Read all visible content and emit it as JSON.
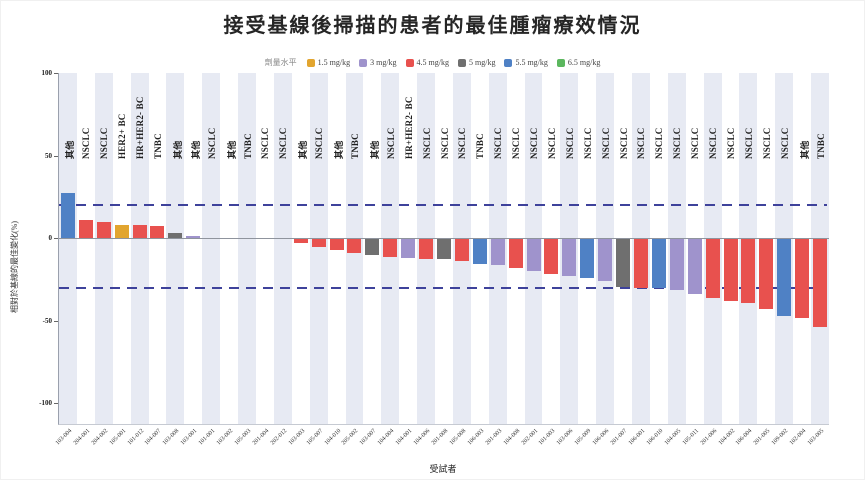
{
  "title": "接受基線後掃描的患者的最佳腫瘤療效情況",
  "legend": {
    "title": "劑量水平",
    "items": [
      {
        "key": "1.5",
        "label": "1.5 mg/kg",
        "color": "#e2a52f"
      },
      {
        "key": "3",
        "label": "3 mg/kg",
        "color": "#9f93cc"
      },
      {
        "key": "4.5",
        "label": "4.5 mg/kg",
        "color": "#e8514e"
      },
      {
        "key": "5",
        "label": "5 mg/kg",
        "color": "#6f6f6f"
      },
      {
        "key": "5.5",
        "label": "5.5 mg/kg",
        "color": "#4f81c5"
      },
      {
        "key": "6.5",
        "label": "6.5 mg/kg",
        "color": "#5bb75e"
      }
    ]
  },
  "chart_data": {
    "type": "bar",
    "title": "接受基線後掃描的患者的最佳腫瘤療效情況",
    "xlabel": "受試者",
    "ylabel": "相對於基線的最佳變化(%)",
    "ylim": [
      -100,
      100
    ],
    "yticks": [
      100,
      50,
      0,
      -50,
      -100
    ],
    "grid": false,
    "legend_position": "top",
    "reference_lines": [
      {
        "value": 20,
        "style": "dashed",
        "color": "#3e429b"
      },
      {
        "value": -30,
        "style": "dashed",
        "color": "#3e429b"
      }
    ],
    "stripe_color": "#e7eaf3",
    "bars": [
      {
        "subject": "103-004",
        "group": "其他",
        "dose": "5.5",
        "value": 27
      },
      {
        "subject": "204-001",
        "group": "NSCLC",
        "dose": "4.5",
        "value": 11
      },
      {
        "subject": "204-002",
        "group": "NSCLC",
        "dose": "4.5",
        "value": 10
      },
      {
        "subject": "105-001",
        "group": "HER2+ BC",
        "dose": "1.5",
        "value": 8
      },
      {
        "subject": "101-012",
        "group": "HR+HER2- BC",
        "dose": "4.5",
        "value": 8
      },
      {
        "subject": "104-007",
        "group": "TNBC",
        "dose": "4.5",
        "value": 7
      },
      {
        "subject": "103-008",
        "group": "其他",
        "dose": "5",
        "value": 3
      },
      {
        "subject": "103-001",
        "group": "其他",
        "dose": "3",
        "value": 1
      },
      {
        "subject": "101-001",
        "group": "NSCLC",
        "dose": "",
        "value": 0
      },
      {
        "subject": "103-002",
        "group": "其他",
        "dose": "",
        "value": 0
      },
      {
        "subject": "105-003",
        "group": "TNBC",
        "dose": "",
        "value": 0
      },
      {
        "subject": "201-004",
        "group": "NSCLC",
        "dose": "",
        "value": 0
      },
      {
        "subject": "202-012",
        "group": "NSCLC",
        "dose": "",
        "value": 0
      },
      {
        "subject": "103-003",
        "group": "其他",
        "dose": "4.5",
        "value": -3
      },
      {
        "subject": "105-007",
        "group": "NSCLC",
        "dose": "4.5",
        "value": -5.5
      },
      {
        "subject": "104-010",
        "group": "其他",
        "dose": "4.5",
        "value": -7.5
      },
      {
        "subject": "205-002",
        "group": "TNBC",
        "dose": "4.5",
        "value": -9
      },
      {
        "subject": "103-007",
        "group": "其他",
        "dose": "5",
        "value": -10
      },
      {
        "subject": "104-004",
        "group": "NSCLC",
        "dose": "4.5",
        "value": -11.5
      },
      {
        "subject": "104-001",
        "group": "HR+HER2- BC",
        "dose": "3",
        "value": -12
      },
      {
        "subject": "104-006",
        "group": "NSCLC",
        "dose": "4.5",
        "value": -12.5
      },
      {
        "subject": "201-008",
        "group": "NSCLC",
        "dose": "5",
        "value": -13
      },
      {
        "subject": "105-008",
        "group": "NSCLC",
        "dose": "4.5",
        "value": -14
      },
      {
        "subject": "106-003",
        "group": "TNBC",
        "dose": "5.5",
        "value": -15.5
      },
      {
        "subject": "201-003",
        "group": "NSCLC",
        "dose": "3",
        "value": -16.5
      },
      {
        "subject": "104-008",
        "group": "NSCLC",
        "dose": "4.5",
        "value": -18
      },
      {
        "subject": "202-001",
        "group": "NSCLC",
        "dose": "3",
        "value": -20
      },
      {
        "subject": "101-003",
        "group": "NSCLC",
        "dose": "4.5",
        "value": -22
      },
      {
        "subject": "103-006",
        "group": "NSCLC",
        "dose": "3",
        "value": -23
      },
      {
        "subject": "105-009",
        "group": "NSCLC",
        "dose": "5.5",
        "value": -24
      },
      {
        "subject": "106-006",
        "group": "NSCLC",
        "dose": "3",
        "value": -26
      },
      {
        "subject": "201-007",
        "group": "NSCLC",
        "dose": "5",
        "value": -29.5
      },
      {
        "subject": "106-001",
        "group": "NSCLC",
        "dose": "4.5",
        "value": -30
      },
      {
        "subject": "106-010",
        "group": "NSCLC",
        "dose": "5.5",
        "value": -30.5
      },
      {
        "subject": "104-005",
        "group": "NSCLC",
        "dose": "3",
        "value": -31.5
      },
      {
        "subject": "105-011",
        "group": "NSCLC",
        "dose": "3",
        "value": -34
      },
      {
        "subject": "201-006",
        "group": "NSCLC",
        "dose": "4.5",
        "value": -36.5
      },
      {
        "subject": "104-002",
        "group": "NSCLC",
        "dose": "4.5",
        "value": -38
      },
      {
        "subject": "106-004",
        "group": "NSCLC",
        "dose": "4.5",
        "value": -39.5
      },
      {
        "subject": "201-005",
        "group": "NSCLC",
        "dose": "4.5",
        "value": -43
      },
      {
        "subject": "109-002",
        "group": "NSCLC",
        "dose": "5.5",
        "value": -47.5
      },
      {
        "subject": "102-004",
        "group": "其他",
        "dose": "4.5",
        "value": -48.5
      },
      {
        "subject": "103-005",
        "group": "TNBC",
        "dose": "4.5",
        "value": -54
      }
    ]
  }
}
